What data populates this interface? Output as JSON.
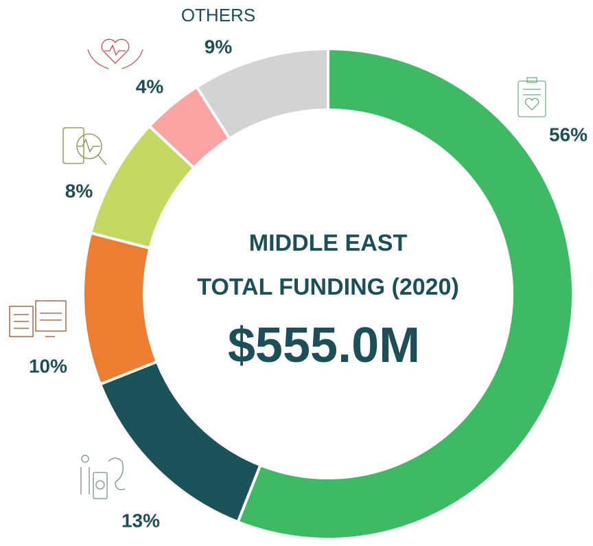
{
  "chart_data": {
    "type": "donut",
    "title": "MIDDLE EAST",
    "subtitle": "TOTAL FUNDING (2020)",
    "center_value": "$555.0M",
    "categories": [
      null,
      null,
      null,
      null,
      null,
      "OTHERS"
    ],
    "values": [
      56,
      13,
      10,
      8,
      4,
      9
    ],
    "value_labels": [
      "56%",
      "13%",
      "10%",
      "8%",
      "4%",
      "9%"
    ],
    "colors": [
      "#3dba63",
      "#1c535a",
      "#ed7d31",
      "#c4d862",
      "#f9a3a3",
      "#d3d3d3"
    ]
  }
}
